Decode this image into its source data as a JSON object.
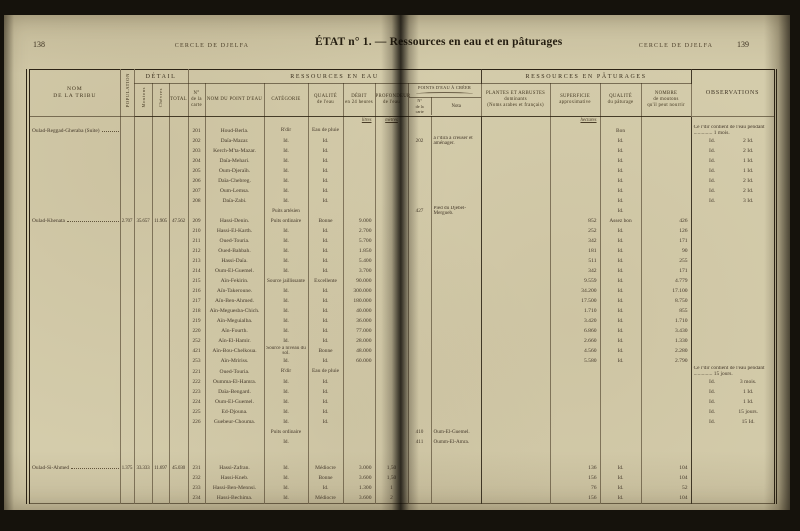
{
  "page": {
    "left_page_number": "138",
    "left_running_title": "CERCLE DE DJELFA",
    "main_title": "ÉTAT n° 1. — Ressources en eau et en pâturages",
    "right_running_title": "CERCLE DE DJELFA",
    "right_page_number": "139"
  },
  "table": {
    "headers": {
      "tribe": "NOM\nDE LA TRIBU",
      "population": "POPULATION",
      "detail": "DÉTAIL",
      "moutons": "Moutons",
      "chevres": "Chèvres",
      "total": "TOTAL",
      "eau": "RESSOURCES EN EAU",
      "carte": "N°\nde la\ncarte",
      "nom_point": "NOM DU POINT D'EAU",
      "categorie": "CATÉGORIE",
      "qualite_eau": "QUALITÉ\nde l'eau",
      "debit": "DÉBIT\nen 24 heures",
      "profondeur": "PROFONDEUR\nde l'eau",
      "pec": "POINTS D'EAU À CRÉER",
      "pec_carte": "N°\nde la\ncarte",
      "pec_nota": "Nota",
      "paturages": "RESSOURCES EN PÂTURAGES",
      "plantes": "PLANTES ET ARBUSTES\ndominants\n(Noms arabes et français)",
      "superficie": "SUPERFICIE\napproximative",
      "qualite_pat": "QUALITÉ\ndu pâturage",
      "nombre": "NOMBRE\nde moutons\nqu'il peut nourrir",
      "observations": "OBSERVATIONS"
    },
    "rows": [
      {
        "u": true,
        "d": "litres",
        "p": "mètres",
        "s": "hectares"
      },
      {
        "tribe": "Oulad-Reggad-Gheraba (Suite)",
        "c": "201",
        "n": "Houd-Berla.",
        "cat": "R'dir",
        "q": "Eau de pluie",
        "qp": "Bon",
        "o": [
          "Ce r'dir contient de l'eau pendant ..............",
          "1 mois."
        ],
        "ol": true
      },
      {
        "c": "202",
        "n": "Daïa-Mazar.",
        "cat": "Id.",
        "q": "Id.",
        "pn": "202",
        "pt": "à r'dira à creuser et aménager.",
        "qp": "Id.",
        "o": [
          "Id.",
          "2 Id."
        ]
      },
      {
        "c": "203",
        "n": "Kerch-M'ta-Mazar.",
        "cat": "Id.",
        "q": "Id.",
        "qp": "Id.",
        "o": [
          "Id.",
          "2 Id."
        ]
      },
      {
        "c": "204",
        "n": "Daïa-Mehari.",
        "cat": "Id.",
        "q": "Id.",
        "qp": "Id.",
        "o": [
          "Id.",
          "1 Id."
        ]
      },
      {
        "c": "205",
        "n": "Oum-Djeraïh.",
        "cat": "Id.",
        "q": "Id.",
        "qp": "Id.",
        "o": [
          "Id.",
          "1 Id."
        ]
      },
      {
        "c": "206",
        "n": "Daïa-Chebreg.",
        "cat": "Id.",
        "q": "Id.",
        "qp": "Id.",
        "o": [
          "Id.",
          "2 Id."
        ]
      },
      {
        "c": "207",
        "n": "Oum-Lemsa.",
        "cat": "Id.",
        "q": "Id.",
        "qp": "Id.",
        "o": [
          "Id.",
          "2 Id."
        ]
      },
      {
        "c": "208",
        "n": "Daïa-Zabi.",
        "cat": "Id.",
        "q": "Id.",
        "qp": "Id.",
        "o": [
          "Id.",
          "3 Id."
        ]
      },
      {
        "cat": "Puits artésien",
        "pn": "427",
        "pt": "Pied du Djebel-Mergueb.",
        "qp": "Id."
      },
      {
        "tribe": "Oulad-Khenata",
        "pop": "2.707",
        "m": "35.657",
        "ch": "11.905",
        "t": "47.562",
        "c": "209",
        "n": "Hassi-Denin.",
        "cat": "Puits ordinaire",
        "q": "Bonne",
        "d": "9.000",
        "s": "852",
        "qp": "Assez bon",
        "nb": "426"
      },
      {
        "c": "210",
        "n": "Hassi-El-Karth.",
        "cat": "Id.",
        "q": "Id.",
        "d": "2.700",
        "s": "252",
        "qp": "Id.",
        "nb": "126"
      },
      {
        "c": "211",
        "n": "Oued-Touria.",
        "cat": "Id.",
        "q": "Id.",
        "d": "5.700",
        "s": "342",
        "qp": "Id.",
        "nb": "171"
      },
      {
        "c": "212",
        "n": "Oued-Bahbah.",
        "cat": "Id.",
        "q": "Id.",
        "d": "1.850",
        "s": "181",
        "qp": "Id.",
        "nb": "90"
      },
      {
        "c": "213",
        "n": "Hassi-Daïa.",
        "cat": "Id.",
        "q": "Id.",
        "d": "5.400",
        "s": "511",
        "qp": "Id.",
        "nb": "255"
      },
      {
        "c": "214",
        "n": "Oum-El-Guemel.",
        "cat": "Id.",
        "q": "Id.",
        "d": "3.700",
        "s": "342",
        "qp": "Id.",
        "nb": "171"
      },
      {
        "c": "215",
        "n": "Aïn-Fekirin.",
        "cat": "Source jaillissante",
        "q": "Excellente",
        "d": "90.000",
        "s": "9.559",
        "qp": "Id.",
        "nb": "4.779"
      },
      {
        "c": "216",
        "n": "Aïn-Takeroune.",
        "cat": "Id.",
        "q": "Id.",
        "d": "300.000",
        "s": "34.200",
        "qp": "Id.",
        "nb": "17.100"
      },
      {
        "c": "217",
        "n": "Aïn-Ben-Ahmed.",
        "cat": "Id.",
        "q": "Id.",
        "d": "180.000",
        "s": "17.500",
        "qp": "Id.",
        "nb": "8.750"
      },
      {
        "c": "218",
        "n": "Aïn-Meguesba-Chich.",
        "cat": "Id.",
        "q": "Id.",
        "d": "40.000",
        "s": "1.710",
        "qp": "Id.",
        "nb": "855"
      },
      {
        "c": "219",
        "n": "Aïn-Meguialba.",
        "cat": "Id.",
        "q": "Id.",
        "d": "36.000",
        "s": "3.420",
        "qp": "Id.",
        "nb": "1.710"
      },
      {
        "c": "220",
        "n": "Aïn-Fourth.",
        "cat": "Id.",
        "q": "Id.",
        "d": "77.000",
        "s": "6.860",
        "qp": "Id.",
        "nb": "3.430"
      },
      {
        "c": "252",
        "n": "Aïn-El-Hamir.",
        "cat": "Id.",
        "q": "Id.",
        "d": "28.000",
        "s": "2.660",
        "qp": "Id.",
        "nb": "1.330"
      },
      {
        "c": "421",
        "n": "Aïn-Bou-Chelkoua.",
        "cat": "Source à niveau du sol.",
        "q": "Bonne",
        "d": "48.000",
        "s": "4.560",
        "qp": "Id.",
        "nb": "2.280"
      },
      {
        "c": "253",
        "n": "Aïn-Mririss.",
        "cat": "Id.",
        "q": "Id.",
        "d": "60.000",
        "s": "5.580",
        "qp": "Id.",
        "nb": "2.790"
      },
      {
        "c": "221",
        "n": "Oued-Touria.",
        "cat": "R'dir",
        "q": "Eau de pluie",
        "o": [
          "Ce r'dir contient de l'eau pendant ..............",
          "15 jours."
        ],
        "ol": true
      },
      {
        "c": "222",
        "n": "Oumma-El-Hamra.",
        "cat": "Id.",
        "q": "Id.",
        "o": [
          "Id.",
          "3 mois."
        ]
      },
      {
        "c": "223",
        "n": "Daïa-Bengard.",
        "cat": "Id.",
        "q": "Id.",
        "o": [
          "Id.",
          "1 Id."
        ]
      },
      {
        "c": "224",
        "n": "Oum-El-Guemel.",
        "cat": "Id.",
        "q": "Id.",
        "o": [
          "Id.",
          "1 Id."
        ]
      },
      {
        "c": "225",
        "n": "Ed-Djouna.",
        "cat": "Id.",
        "q": "Id.",
        "o": [
          "Id.",
          "15 jours."
        ]
      },
      {
        "c": "226",
        "n": "Guebeur-Chouma.",
        "cat": "Id.",
        "q": "Id.",
        "o": [
          "Id.",
          "15 Id."
        ]
      },
      {
        "cat": "Puits ordinaire",
        "pn": "410",
        "pt": "Oum-El-Guemel."
      },
      {
        "cat": "Id.",
        "pn": "411",
        "pt": "Oumm-El-Amra."
      },
      {
        "sp": true
      },
      {
        "tribe": "Oulad-Si-Ahmed",
        "pop": "1.375",
        "m": "33.333",
        "ch": "11.697",
        "t": "45.030",
        "c": "231",
        "n": "Hassi-Zafran.",
        "cat": "Id.",
        "q": "Médiocre",
        "d": "3.000",
        "p": "1,50",
        "s": "136",
        "qp": "Id.",
        "nb": "104"
      },
      {
        "c": "232",
        "n": "Hassi-Kneb.",
        "cat": "Id.",
        "q": "Bonne",
        "d": "3.600",
        "p": "1,50",
        "s": "156",
        "qp": "Id.",
        "nb": "104"
      },
      {
        "c": "233",
        "n": "Hassi-Ben-Mennsi.",
        "cat": "Id.",
        "q": "Id.",
        "d": "1.300",
        "p": "1",
        "s": "76",
        "qp": "Id.",
        "nb": "52"
      },
      {
        "c": "234",
        "n": "Hassi-Bechima.",
        "cat": "Id.",
        "q": "Médiocre",
        "d": "3.600",
        "p": "2",
        "s": "156",
        "qp": "Id.",
        "nb": "104"
      }
    ]
  }
}
